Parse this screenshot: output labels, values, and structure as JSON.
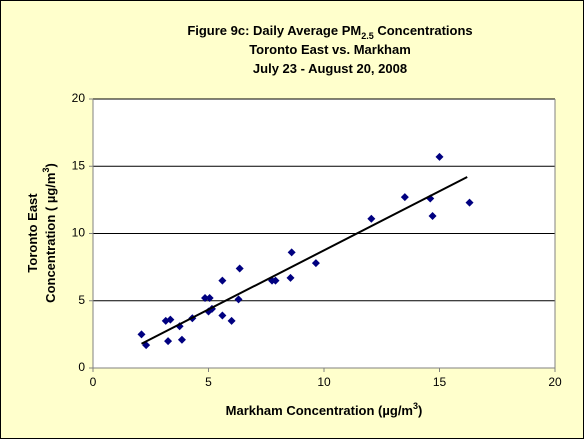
{
  "chart_data": {
    "type": "scatter",
    "title": [
      [
        {
          "text": "Figure 9c:  Daily Average PM"
        },
        {
          "text": "2.5",
          "sub": true
        },
        {
          "text": " Concentrations"
        }
      ],
      [
        {
          "text": "Toronto East  vs. Markham"
        }
      ],
      [
        {
          "text": "July 23 - August 20, 2008"
        }
      ]
    ],
    "xlabel": [
      [
        {
          "text": "Markham Concentration (µg/m"
        },
        {
          "text": "3",
          "sup": true
        },
        {
          "text": ")"
        }
      ]
    ],
    "ylabel": [
      [
        {
          "text": "Toronto East"
        }
      ],
      [
        {
          "text": "Concentration ( µg/m"
        },
        {
          "text": "3",
          "sup": true
        },
        {
          "text": ")"
        }
      ]
    ],
    "x": [
      2.1,
      2.3,
      3.25,
      3.15,
      3.35,
      3.75,
      3.85,
      4.3,
      4.85,
      5.05,
      5.0,
      5.15,
      5.6,
      5.6,
      6.0,
      6.35,
      6.3,
      7.75,
      7.9,
      8.55,
      8.6,
      9.65,
      12.05,
      13.5,
      14.6,
      14.7,
      15.0,
      16.3
    ],
    "series": [
      {
        "color": "#000080",
        "values": [
          2.5,
          1.7,
          2.0,
          3.5,
          3.6,
          3.1,
          2.1,
          3.7,
          5.2,
          5.2,
          4.2,
          4.4,
          3.9,
          6.5,
          3.5,
          7.4,
          5.1,
          6.5,
          6.5,
          6.7,
          8.6,
          7.8,
          11.1,
          12.7,
          12.6,
          11.3,
          15.7,
          12.3
        ]
      }
    ],
    "trendline": {
      "x": [
        2.1,
        16.2
      ],
      "y": [
        1.8,
        14.2
      ],
      "color": "#000000"
    },
    "xlim": [
      0,
      20
    ],
    "xticks": [
      0,
      5,
      10,
      15,
      20
    ],
    "ylim": [
      0,
      20
    ],
    "yticks": [
      0,
      5,
      10,
      15,
      20
    ],
    "grid": true
  }
}
